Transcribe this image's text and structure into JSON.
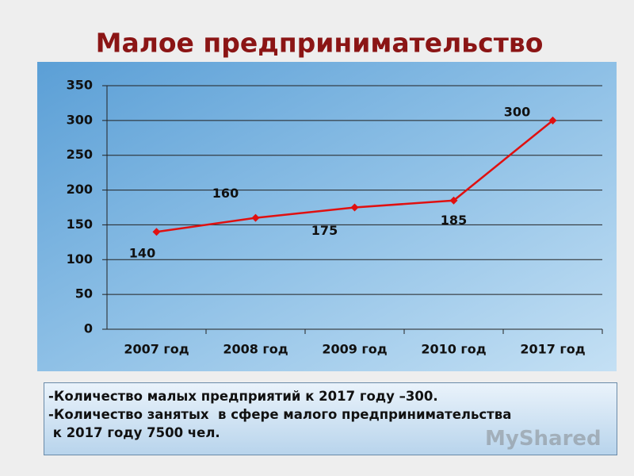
{
  "chart_data": {
    "type": "line",
    "title": "Малое предпринимательство",
    "categories": [
      "2007 год",
      "2008 год",
      "2009 год",
      "2010 год",
      "2017 год"
    ],
    "series": [
      {
        "color": "#e01010",
        "values": [
          140,
          160,
          175,
          185,
          300
        ]
      }
    ],
    "ylim": [
      0,
      350
    ],
    "yticks": [
      0,
      50,
      100,
      150,
      200,
      250,
      300,
      350
    ],
    "grid": true
  },
  "text_box": {
    "lines": [
      "-Количество малых предприятий к 2017 году –300.",
      "-Количество занятых  в сфере малого предпринимательства",
      " к 2017 году 7500 чел."
    ]
  },
  "watermark": "MyShared"
}
